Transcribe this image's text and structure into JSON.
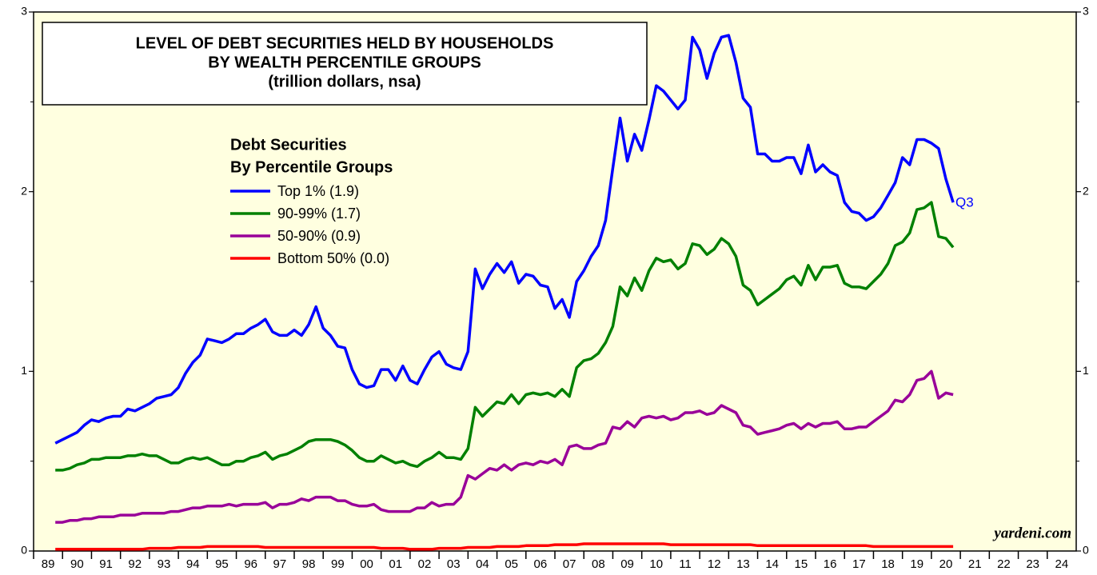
{
  "chart_data": {
    "type": "line",
    "title": [
      "LEVEL OF DEBT SECURITIES HELD BY HOUSEHOLDS",
      "BY WEALTH PERCENTILE GROUPS",
      "(trillion dollars, nsa)"
    ],
    "legend_title": [
      "Debt Securities",
      "By Percentile Groups"
    ],
    "annotations": {
      "last_point": "Q3",
      "source": "yardeni.com"
    },
    "x": [
      1989.75,
      1990,
      1990.25,
      1990.5,
      1990.75,
      1991,
      1991.25,
      1991.5,
      1991.75,
      1992,
      1992.25,
      1992.5,
      1992.75,
      1993,
      1993.25,
      1993.5,
      1993.75,
      1994,
      1994.25,
      1994.5,
      1994.75,
      1995,
      1995.25,
      1995.5,
      1995.75,
      1996,
      1996.25,
      1996.5,
      1996.75,
      1997,
      1997.25,
      1997.5,
      1997.75,
      1998,
      1998.25,
      1998.5,
      1998.75,
      1999,
      1999.25,
      1999.5,
      1999.75,
      2000,
      2000.25,
      2000.5,
      2000.75,
      2001,
      2001.25,
      2001.5,
      2001.75,
      2002,
      2002.25,
      2002.5,
      2002.75,
      2003,
      2003.25,
      2003.5,
      2003.75,
      2004,
      2004.25,
      2004.5,
      2004.75,
      2005,
      2005.25,
      2005.5,
      2005.75,
      2006,
      2006.25,
      2006.5,
      2006.75,
      2007,
      2007.25,
      2007.5,
      2007.75,
      2008,
      2008.25,
      2008.5,
      2008.75,
      2009,
      2009.25,
      2009.5,
      2009.75,
      2010,
      2010.25,
      2010.5,
      2010.75,
      2011,
      2011.25,
      2011.5,
      2011.75,
      2012,
      2012.25,
      2012.5,
      2012.75,
      2013,
      2013.25,
      2013.5,
      2013.75,
      2014,
      2014.25,
      2014.5,
      2014.75,
      2015,
      2015.25,
      2015.5,
      2015.75,
      2016,
      2016.25,
      2016.5,
      2016.75,
      2017,
      2017.25,
      2017.5,
      2017.75,
      2018,
      2018.25,
      2018.5,
      2018.75,
      2019,
      2019.25,
      2019.5,
      2019.75,
      2020,
      2020.25,
      2020.5,
      2020.75
    ],
    "series": [
      {
        "name": "Top 1% (1.9)",
        "color": "#0000ff",
        "values": [
          0.6,
          0.62,
          0.64,
          0.66,
          0.7,
          0.73,
          0.72,
          0.74,
          0.75,
          0.75,
          0.79,
          0.78,
          0.8,
          0.82,
          0.85,
          0.86,
          0.87,
          0.91,
          0.99,
          1.05,
          1.09,
          1.18,
          1.17,
          1.16,
          1.18,
          1.21,
          1.21,
          1.24,
          1.26,
          1.29,
          1.22,
          1.2,
          1.2,
          1.23,
          1.2,
          1.26,
          1.36,
          1.24,
          1.2,
          1.14,
          1.13,
          1.01,
          0.93,
          0.91,
          0.92,
          1.01,
          1.01,
          0.95,
          1.03,
          0.95,
          0.93,
          1.01,
          1.08,
          1.11,
          1.04,
          1.02,
          1.01,
          1.11,
          1.57,
          1.46,
          1.54,
          1.6,
          1.55,
          1.61,
          1.49,
          1.54,
          1.53,
          1.48,
          1.47,
          1.35,
          1.4,
          1.3,
          1.5,
          1.56,
          1.64,
          1.7,
          1.84,
          2.13,
          2.41,
          2.17,
          2.32,
          2.23,
          2.4,
          2.59,
          2.56,
          2.51,
          2.46,
          2.51,
          2.86,
          2.79,
          2.63,
          2.77,
          2.86,
          2.87,
          2.72,
          2.52,
          2.47,
          2.21,
          2.21,
          2.17,
          2.17,
          2.19,
          2.19,
          2.1,
          2.26,
          2.11,
          2.15,
          2.11,
          2.09,
          1.94,
          1.89,
          1.88,
          1.84,
          1.86,
          1.91,
          1.98,
          2.05,
          2.19,
          2.15,
          2.29,
          2.29,
          2.27,
          2.24,
          2.07,
          1.94
        ]
      },
      {
        "name": "90-99% (1.7)",
        "color": "#008000",
        "values": [
          0.45,
          0.45,
          0.46,
          0.48,
          0.49,
          0.51,
          0.51,
          0.52,
          0.52,
          0.52,
          0.53,
          0.53,
          0.54,
          0.53,
          0.53,
          0.51,
          0.49,
          0.49,
          0.51,
          0.52,
          0.51,
          0.52,
          0.5,
          0.48,
          0.48,
          0.5,
          0.5,
          0.52,
          0.53,
          0.55,
          0.51,
          0.53,
          0.54,
          0.56,
          0.58,
          0.61,
          0.62,
          0.62,
          0.62,
          0.61,
          0.59,
          0.56,
          0.52,
          0.5,
          0.5,
          0.53,
          0.51,
          0.49,
          0.5,
          0.48,
          0.47,
          0.5,
          0.52,
          0.55,
          0.52,
          0.52,
          0.51,
          0.57,
          0.8,
          0.75,
          0.79,
          0.83,
          0.82,
          0.87,
          0.82,
          0.87,
          0.88,
          0.87,
          0.88,
          0.86,
          0.9,
          0.86,
          1.02,
          1.06,
          1.07,
          1.1,
          1.16,
          1.25,
          1.47,
          1.42,
          1.52,
          1.45,
          1.56,
          1.63,
          1.61,
          1.62,
          1.57,
          1.6,
          1.71,
          1.7,
          1.65,
          1.68,
          1.74,
          1.71,
          1.64,
          1.48,
          1.45,
          1.37,
          1.4,
          1.43,
          1.46,
          1.51,
          1.53,
          1.48,
          1.59,
          1.51,
          1.58,
          1.58,
          1.59,
          1.49,
          1.47,
          1.47,
          1.46,
          1.5,
          1.54,
          1.6,
          1.7,
          1.72,
          1.77,
          1.9,
          1.91,
          1.94,
          1.75,
          1.74,
          1.69
        ]
      },
      {
        "name": "50-90% (0.9)",
        "color": "#990099",
        "values": [
          0.16,
          0.16,
          0.17,
          0.17,
          0.18,
          0.18,
          0.19,
          0.19,
          0.19,
          0.2,
          0.2,
          0.2,
          0.21,
          0.21,
          0.21,
          0.21,
          0.22,
          0.22,
          0.23,
          0.24,
          0.24,
          0.25,
          0.25,
          0.25,
          0.26,
          0.25,
          0.26,
          0.26,
          0.26,
          0.27,
          0.24,
          0.26,
          0.26,
          0.27,
          0.29,
          0.28,
          0.3,
          0.3,
          0.3,
          0.28,
          0.28,
          0.26,
          0.25,
          0.25,
          0.26,
          0.23,
          0.22,
          0.22,
          0.22,
          0.22,
          0.24,
          0.24,
          0.27,
          0.25,
          0.26,
          0.26,
          0.3,
          0.42,
          0.4,
          0.43,
          0.46,
          0.45,
          0.48,
          0.45,
          0.48,
          0.49,
          0.48,
          0.5,
          0.49,
          0.51,
          0.48,
          0.58,
          0.59,
          0.57,
          0.57,
          0.59,
          0.6,
          0.69,
          0.68,
          0.72,
          0.69,
          0.74,
          0.75,
          0.74,
          0.75,
          0.73,
          0.74,
          0.77,
          0.77,
          0.78,
          0.76,
          0.77,
          0.81,
          0.79,
          0.77,
          0.7,
          0.69,
          0.65,
          0.66,
          0.67,
          0.68,
          0.7,
          0.71,
          0.68,
          0.71,
          0.69,
          0.71,
          0.71,
          0.72,
          0.68,
          0.68,
          0.69,
          0.69,
          0.72,
          0.75,
          0.78,
          0.84,
          0.83,
          0.87,
          0.95,
          0.96,
          1.0,
          0.85,
          0.88,
          0.87
        ]
      },
      {
        "name": "Bottom 50% (0.0)",
        "color": "#ff0000",
        "values": [
          0.01,
          0.01,
          0.01,
          0.01,
          0.01,
          0.01,
          0.01,
          0.01,
          0.01,
          0.01,
          0.01,
          0.01,
          0.01,
          0.015,
          0.015,
          0.015,
          0.015,
          0.02,
          0.02,
          0.02,
          0.02,
          0.025,
          0.025,
          0.025,
          0.025,
          0.025,
          0.025,
          0.025,
          0.025,
          0.02,
          0.02,
          0.02,
          0.02,
          0.02,
          0.02,
          0.02,
          0.02,
          0.02,
          0.02,
          0.02,
          0.02,
          0.02,
          0.02,
          0.02,
          0.02,
          0.015,
          0.015,
          0.015,
          0.015,
          0.01,
          0.01,
          0.01,
          0.01,
          0.015,
          0.015,
          0.015,
          0.015,
          0.02,
          0.02,
          0.02,
          0.02,
          0.025,
          0.025,
          0.025,
          0.025,
          0.03,
          0.03,
          0.03,
          0.03,
          0.035,
          0.035,
          0.035,
          0.035,
          0.04,
          0.04,
          0.04,
          0.04,
          0.04,
          0.04,
          0.04,
          0.04,
          0.04,
          0.04,
          0.04,
          0.04,
          0.035,
          0.035,
          0.035,
          0.035,
          0.035,
          0.035,
          0.035,
          0.035,
          0.035,
          0.035,
          0.035,
          0.035,
          0.03,
          0.03,
          0.03,
          0.03,
          0.03,
          0.03,
          0.03,
          0.03,
          0.03,
          0.03,
          0.03,
          0.03,
          0.03,
          0.03,
          0.03,
          0.03,
          0.025,
          0.025,
          0.025,
          0.025,
          0.025,
          0.025,
          0.025,
          0.025,
          0.025,
          0.025,
          0.025,
          0.025
        ]
      }
    ],
    "xlim": [
      1989,
      2025
    ],
    "xticks": [
      {
        "value": 1989,
        "label": "89"
      },
      {
        "value": 1990,
        "label": "90"
      },
      {
        "value": 1991,
        "label": "91"
      },
      {
        "value": 1992,
        "label": "92"
      },
      {
        "value": 1993,
        "label": "93"
      },
      {
        "value": 1994,
        "label": "94"
      },
      {
        "value": 1995,
        "label": "95"
      },
      {
        "value": 1996,
        "label": "96"
      },
      {
        "value": 1997,
        "label": "97"
      },
      {
        "value": 1998,
        "label": "98"
      },
      {
        "value": 1999,
        "label": "99"
      },
      {
        "value": 2000,
        "label": "00"
      },
      {
        "value": 2001,
        "label": "01"
      },
      {
        "value": 2002,
        "label": "02"
      },
      {
        "value": 2003,
        "label": "03"
      },
      {
        "value": 2004,
        "label": "04"
      },
      {
        "value": 2005,
        "label": "05"
      },
      {
        "value": 2006,
        "label": "06"
      },
      {
        "value": 2007,
        "label": "07"
      },
      {
        "value": 2008,
        "label": "08"
      },
      {
        "value": 2009,
        "label": "09"
      },
      {
        "value": 2010,
        "label": "10"
      },
      {
        "value": 2011,
        "label": "11"
      },
      {
        "value": 2012,
        "label": "12"
      },
      {
        "value": 2013,
        "label": "13"
      },
      {
        "value": 2014,
        "label": "14"
      },
      {
        "value": 2015,
        "label": "15"
      },
      {
        "value": 2016,
        "label": "16"
      },
      {
        "value": 2017,
        "label": "17"
      },
      {
        "value": 2018,
        "label": "18"
      },
      {
        "value": 2019,
        "label": "19"
      },
      {
        "value": 2020,
        "label": "20"
      },
      {
        "value": 2021,
        "label": "21"
      },
      {
        "value": 2022,
        "label": "22"
      },
      {
        "value": 2023,
        "label": "23"
      },
      {
        "value": 2024,
        "label": "24"
      }
    ],
    "ylim": [
      0,
      3
    ],
    "yticks": [
      0,
      1,
      2,
      3
    ],
    "yticks_minor": [
      0.5,
      1.5,
      2.5
    ],
    "y2lim": [
      0,
      3
    ],
    "y2ticks": [
      0,
      1,
      2,
      3
    ],
    "grid": false,
    "legend": "upper left"
  }
}
